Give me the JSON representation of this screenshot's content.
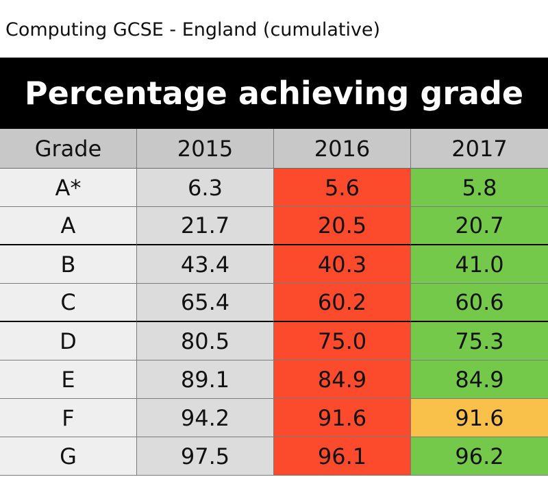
{
  "page_title": "Computing GCSE - England (cumulative)",
  "banner": "Percentage achieving grade",
  "colors": {
    "banner_bg": "#000000",
    "header_bg": "#c8c8c8",
    "grade_bg": "#efefef",
    "y2015_bg": "#dcdcdc",
    "red": "#fc4a2c",
    "green": "#74c84a",
    "amber": "#f9c04a"
  },
  "chart_data": {
    "type": "table",
    "title": "Percentage achieving grade",
    "columns": [
      "Grade",
      "2015",
      "2016",
      "2017"
    ],
    "rows": [
      {
        "grade": "A*",
        "v2015": "6.3",
        "v2016": "5.6",
        "v2017": "5.8",
        "c2016": "red",
        "c2017": "green"
      },
      {
        "grade": "A",
        "v2015": "21.7",
        "v2016": "20.5",
        "v2017": "20.7",
        "c2016": "red",
        "c2017": "green"
      },
      {
        "grade": "B",
        "v2015": "43.4",
        "v2016": "40.3",
        "v2017": "41.0",
        "c2016": "red",
        "c2017": "green"
      },
      {
        "grade": "C",
        "v2015": "65.4",
        "v2016": "60.2",
        "v2017": "60.6",
        "c2016": "red",
        "c2017": "green"
      },
      {
        "grade": "D",
        "v2015": "80.5",
        "v2016": "75.0",
        "v2017": "75.3",
        "c2016": "red",
        "c2017": "green"
      },
      {
        "grade": "E",
        "v2015": "89.1",
        "v2016": "84.9",
        "v2017": "84.9",
        "c2016": "red",
        "c2017": "green"
      },
      {
        "grade": "F",
        "v2015": "94.2",
        "v2016": "91.6",
        "v2017": "91.6",
        "c2016": "red",
        "c2017": "amber"
      },
      {
        "grade": "G",
        "v2015": "97.5",
        "v2016": "96.1",
        "v2017": "96.2",
        "c2016": "red",
        "c2017": "green"
      }
    ]
  }
}
